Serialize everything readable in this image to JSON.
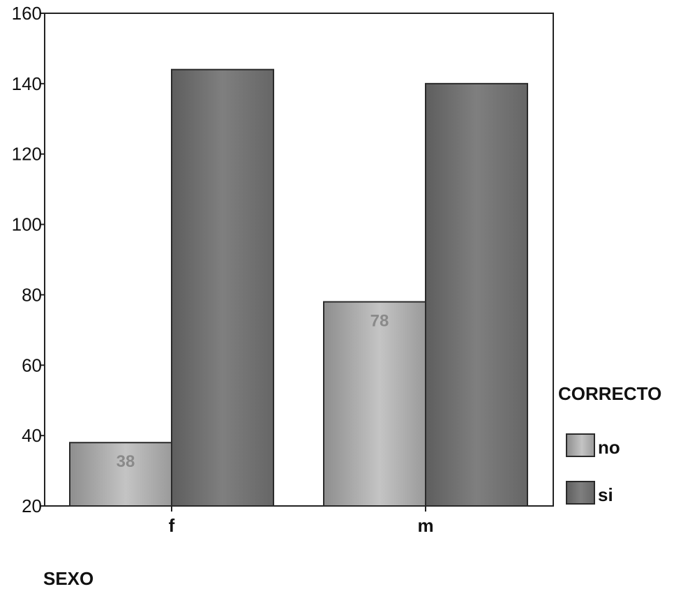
{
  "chart_data": {
    "type": "bar",
    "title": "",
    "xlabel": "SEXO",
    "ylabel": "",
    "categories": [
      "f",
      "m"
    ],
    "ylim": [
      20,
      160
    ],
    "yticks": [
      20,
      40,
      60,
      80,
      100,
      120,
      140,
      160
    ],
    "grid": false,
    "legend": {
      "title": "CORRECTO",
      "placement": "right"
    },
    "series": [
      {
        "name": "no",
        "values": [
          38,
          78
        ],
        "data_labels": [
          "38",
          "78"
        ],
        "color": "#a8a8a8"
      },
      {
        "name": "si",
        "values": [
          144,
          140
        ],
        "data_labels": [],
        "color": "#707070"
      }
    ]
  }
}
